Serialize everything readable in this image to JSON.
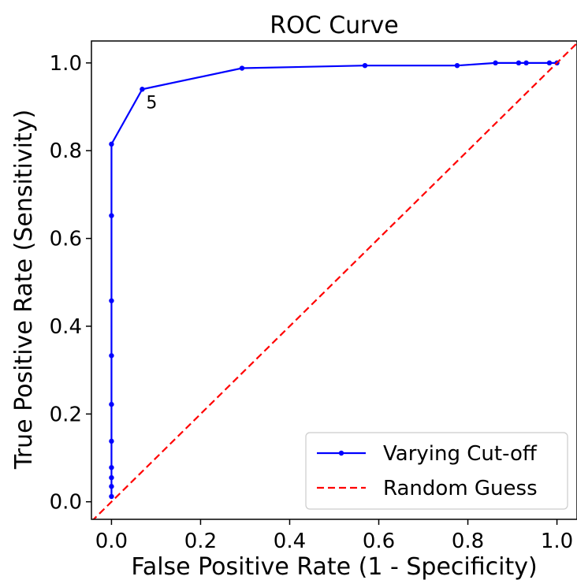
{
  "chart_data": {
    "type": "line",
    "title": "ROC Curve",
    "xlabel": "False Positive Rate (1 - Specificity)",
    "ylabel": "True Positive Rate (Sensitivity)",
    "xlim": [
      -0.045,
      1.045
    ],
    "ylim": [
      -0.04,
      1.05
    ],
    "x_ticks": [
      0.0,
      0.2,
      0.4,
      0.6,
      0.8,
      1.0
    ],
    "x_tick_labels": [
      "0.0",
      "0.2",
      "0.4",
      "0.6",
      "0.8",
      "1.0"
    ],
    "y_ticks": [
      0.0,
      0.2,
      0.4,
      0.6,
      0.8,
      1.0
    ],
    "y_tick_labels": [
      "0.0",
      "0.2",
      "0.4",
      "0.6",
      "0.8",
      "1.0"
    ],
    "grid": false,
    "legend_position": "bottom-right",
    "series": [
      {
        "name": "Varying Cut-off",
        "color": "#0000ff",
        "style": "solid",
        "markers": true,
        "points": [
          {
            "x": 0.0,
            "y": 0.012
          },
          {
            "x": 0.0,
            "y": 0.035
          },
          {
            "x": 0.0,
            "y": 0.055
          },
          {
            "x": 0.0,
            "y": 0.078
          },
          {
            "x": 0.0,
            "y": 0.138
          },
          {
            "x": 0.0,
            "y": 0.222
          },
          {
            "x": 0.0,
            "y": 0.333
          },
          {
            "x": 0.0,
            "y": 0.458
          },
          {
            "x": 0.0,
            "y": 0.652
          },
          {
            "x": 0.0,
            "y": 0.815
          },
          {
            "x": 0.069,
            "y": 0.94
          },
          {
            "x": 0.293,
            "y": 0.988
          },
          {
            "x": 0.569,
            "y": 0.994
          },
          {
            "x": 0.776,
            "y": 0.994
          },
          {
            "x": 0.862,
            "y": 1.0
          },
          {
            "x": 0.914,
            "y": 1.0
          },
          {
            "x": 0.931,
            "y": 1.0
          },
          {
            "x": 0.983,
            "y": 1.0
          },
          {
            "x": 1.0,
            "y": 1.0
          }
        ]
      },
      {
        "name": "Random Guess",
        "color": "#ff0000",
        "style": "dashed",
        "markers": false,
        "points": [
          {
            "x": -0.045,
            "y": -0.045
          },
          {
            "x": 1.045,
            "y": 1.045
          }
        ]
      }
    ],
    "annotations": [
      {
        "text": "5",
        "x": 0.069,
        "y": 0.94
      }
    ]
  }
}
